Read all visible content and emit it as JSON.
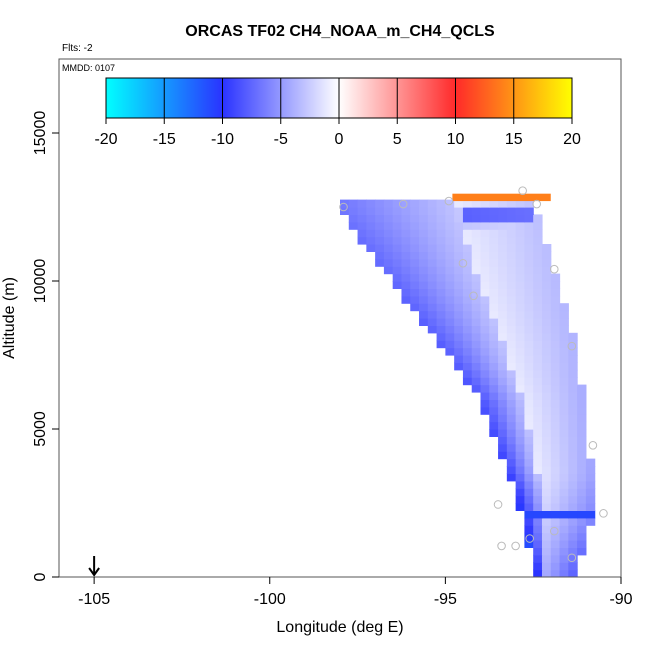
{
  "chart_data": {
    "type": "heatmap",
    "title": "ORCAS TF02 CH4_NOAA_m_CH4_QCLS",
    "subtitle_left": "Flts: -2",
    "panel_label": "MMDD: 0107",
    "xlabel": "Longitude (deg E)",
    "ylabel": "Altitude (m)",
    "xlim": [
      -106,
      -90
    ],
    "ylim": [
      0,
      17500
    ],
    "x_ticks": [
      -105,
      -100,
      -95,
      -90
    ],
    "x_tick_labels": [
      "-105",
      "-100",
      "-95",
      "-90"
    ],
    "y_ticks": [
      0,
      5000,
      10000,
      15000
    ],
    "y_tick_labels": [
      "0",
      "5000",
      "10000",
      "15000"
    ],
    "colorbar": {
      "min": -20,
      "max": 20,
      "ticks": [
        -20,
        -15,
        -10,
        -5,
        0,
        5,
        10,
        15,
        20
      ],
      "tick_labels": [
        "-20",
        "-15",
        "-10",
        "-5",
        "0",
        "5",
        "10",
        "15",
        "20"
      ],
      "colors": [
        "#00ffff",
        "#2a33ff",
        "#ffffff",
        "#ff2a2a",
        "#ffff00"
      ]
    },
    "region_edges": {
      "west_boundary": [
        [
          -98.1,
          12500
        ],
        [
          -94.0,
          6000
        ],
        [
          -93.0,
          3000
        ],
        [
          -92.5,
          200
        ]
      ],
      "east_boundary": [
        [
          -92.5,
          12600
        ],
        [
          -91.9,
          10400
        ],
        [
          -91.3,
          7900
        ],
        [
          -90.9,
          4500
        ],
        [
          -90.8,
          2000
        ],
        [
          -91.3,
          200
        ]
      ]
    },
    "field_description": "CH4 difference NOAA minus QCLS binned on longitude/altitude grid",
    "anomaly_bands": [
      {
        "lon_lo": -98.1,
        "lon_hi": -92.3,
        "alt_lo": 11800,
        "alt_hi": 12500,
        "value": -4
      },
      {
        "lon_lo": -94.5,
        "lon_hi": -92.5,
        "alt_lo": 12000,
        "alt_hi": 12600,
        "value": -9
      }
    ],
    "high_band": {
      "lon_lo": -94.8,
      "lon_hi": -92.0,
      "alt_lo": 12700,
      "alt_hi": 12950,
      "value": 14
    },
    "low_layer": {
      "lon_lo": -94.5,
      "lon_hi": -90.5,
      "alt_lo": 1900,
      "alt_hi": 2200,
      "value": -11
    },
    "points": [
      {
        "x": -97.9,
        "y": 12500
      },
      {
        "x": -96.2,
        "y": 12600
      },
      {
        "x": -94.9,
        "y": 12700
      },
      {
        "x": -92.8,
        "y": 13050
      },
      {
        "x": -92.4,
        "y": 12600
      },
      {
        "x": -94.5,
        "y": 10600
      },
      {
        "x": -94.2,
        "y": 9500
      },
      {
        "x": -91.9,
        "y": 10400
      },
      {
        "x": -91.4,
        "y": 7800
      },
      {
        "x": -90.8,
        "y": 4450
      },
      {
        "x": -93.5,
        "y": 2450
      },
      {
        "x": -90.5,
        "y": 2150
      },
      {
        "x": -91.9,
        "y": 1550
      },
      {
        "x": -92.6,
        "y": 1300
      },
      {
        "x": -93.0,
        "y": 1050
      },
      {
        "x": -93.4,
        "y": 1050
      },
      {
        "x": -91.4,
        "y": 650
      }
    ],
    "marker_arrow_x": -105.0,
    "grid": false,
    "legend": "colorbar-top"
  }
}
